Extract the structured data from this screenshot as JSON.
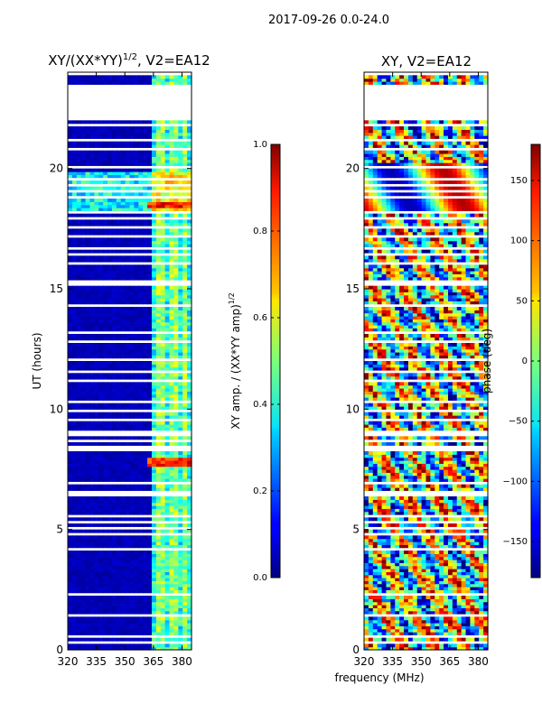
{
  "suptitle": "2017-09-26 0.0-24.0",
  "shared_xlabel": "frequency (MHz)",
  "chart_data": [
    {
      "type": "heatmap",
      "title_prefix": "XY/(XX*YY)",
      "title_sup": "1/2",
      "title_suffix": ", V2=EA12",
      "ylabel": "UT (hours)",
      "xlim": [
        320,
        385
      ],
      "ylim": [
        0,
        24
      ],
      "xticks": [
        320,
        335,
        350,
        365,
        380
      ],
      "yticks": [
        0,
        5,
        10,
        15,
        20
      ],
      "colorbar": {
        "label": "XY amp. / (XX*YY amp)",
        "label_sup": "1/2",
        "range": [
          0.0,
          1.0
        ],
        "ticks": [
          "0.0",
          "0.2",
          "0.4",
          "0.6",
          "0.8",
          "1.0"
        ],
        "tick_values": [
          0.0,
          0.2,
          0.4,
          0.6,
          0.8,
          1.0
        ]
      },
      "notes": "mostly low amplitude (~0.05) below 362 MHz; strong stripes 362-382 MHz; bright band at ~7.8 h and ~18.5 h"
    },
    {
      "type": "heatmap",
      "title": "XY, V2=EA12",
      "xlim": [
        320,
        385
      ],
      "ylim": [
        0,
        24
      ],
      "xticks": [
        320,
        335,
        350,
        365,
        380
      ],
      "yticks": [
        0,
        5,
        10,
        15,
        20
      ],
      "colorbar": {
        "label": "phase (deg)",
        "range": [
          -180,
          180
        ],
        "ticks": [
          "−150",
          "−100",
          "−50",
          "0",
          "50",
          "100",
          "150"
        ],
        "tick_values": [
          -150,
          -100,
          -50,
          0,
          50,
          100,
          150
        ]
      },
      "notes": "phase noisy across band; coherent sinusoidal pattern near 18.5-20 h"
    }
  ]
}
